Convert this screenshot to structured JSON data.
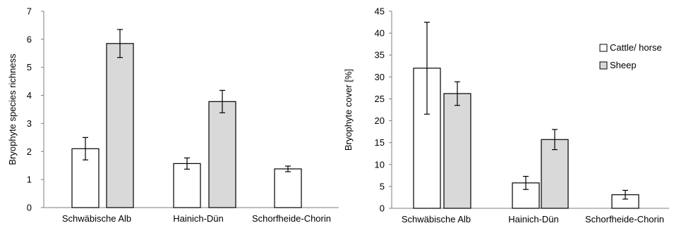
{
  "chart_data": [
    {
      "type": "bar",
      "categories": [
        "Schwäbische Alb",
        "Hainich-Dün",
        "Schorfheide-Chorin"
      ],
      "series": [
        {
          "name": "Cattle/ horse",
          "values": [
            2.1,
            1.57,
            1.38
          ],
          "errors": [
            0.4,
            0.2,
            0.1
          ],
          "color": "#ffffff"
        },
        {
          "name": "Sheep",
          "values": [
            5.85,
            3.78,
            null
          ],
          "errors": [
            0.5,
            0.4,
            null
          ],
          "color": "#d9d9d9"
        }
      ],
      "ylabel": "Bryophyte species richness",
      "ylim": [
        0,
        7
      ],
      "yticks": [
        "0",
        "1",
        "2",
        "3",
        "4",
        "5",
        "6",
        "7"
      ],
      "legend": "none"
    },
    {
      "type": "bar",
      "categories": [
        "Schwäbische Alb",
        "Hainich-Dün",
        "Schorfheide-Chorin"
      ],
      "series": [
        {
          "name": "Cattle/ horse",
          "values": [
            32,
            5.8,
            3.1
          ],
          "errors": [
            10.5,
            1.5,
            1.0
          ],
          "color": "#ffffff"
        },
        {
          "name": "Sheep",
          "values": [
            26.2,
            15.7,
            null
          ],
          "errors": [
            2.7,
            2.3,
            null
          ],
          "color": "#d9d9d9"
        }
      ],
      "ylabel": "Bryophyte cover [%]",
      "ylim": [
        0,
        45
      ],
      "yticks": [
        "0",
        "5",
        "10",
        "15",
        "20",
        "25",
        "30",
        "35",
        "40",
        "45"
      ],
      "legend": "top-right"
    }
  ]
}
